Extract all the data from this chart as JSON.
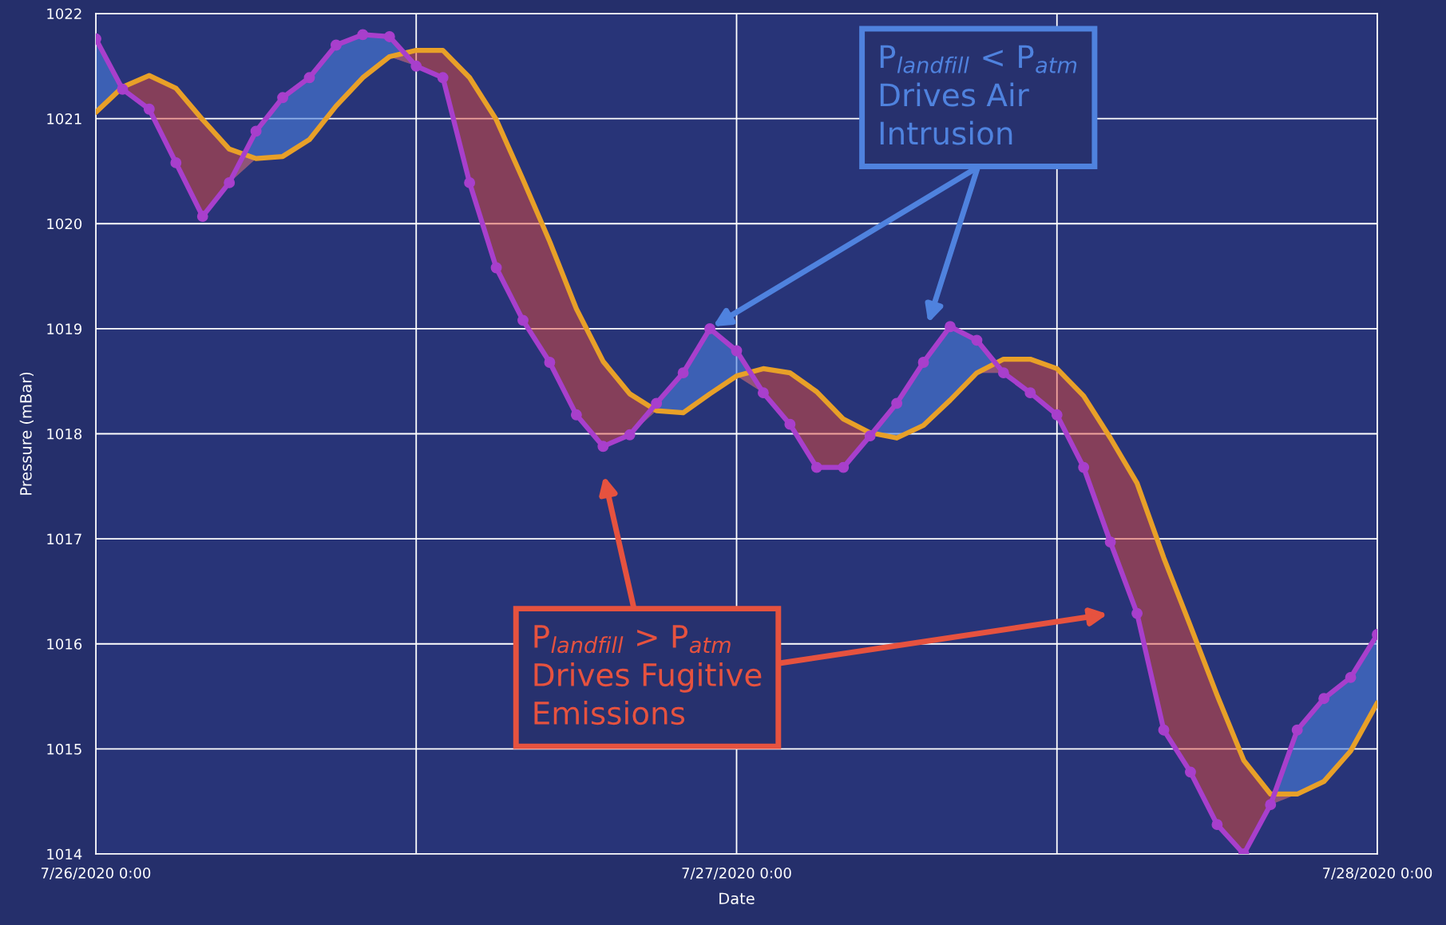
{
  "chart_data": {
    "type": "line",
    "xlabel": "Date",
    "ylabel": "Pressure (mBar)",
    "x": [
      "2020-07-26T00:00",
      "2020-07-26T01:00",
      "2020-07-26T02:00",
      "2020-07-26T03:00",
      "2020-07-26T04:00",
      "2020-07-26T05:00",
      "2020-07-26T06:00",
      "2020-07-26T07:00",
      "2020-07-26T08:00",
      "2020-07-26T09:00",
      "2020-07-26T10:00",
      "2020-07-26T11:00",
      "2020-07-26T12:00",
      "2020-07-26T13:00",
      "2020-07-26T14:00",
      "2020-07-26T15:00",
      "2020-07-26T16:00",
      "2020-07-26T17:00",
      "2020-07-26T18:00",
      "2020-07-26T19:00",
      "2020-07-26T20:00",
      "2020-07-26T21:00",
      "2020-07-26T22:00",
      "2020-07-26T23:00",
      "2020-07-27T00:00",
      "2020-07-27T01:00",
      "2020-07-27T02:00",
      "2020-07-27T03:00",
      "2020-07-27T04:00",
      "2020-07-27T05:00",
      "2020-07-27T06:00",
      "2020-07-27T07:00",
      "2020-07-27T08:00",
      "2020-07-27T09:00",
      "2020-07-27T10:00",
      "2020-07-27T11:00",
      "2020-07-27T12:00",
      "2020-07-27T13:00",
      "2020-07-27T14:00",
      "2020-07-27T15:00",
      "2020-07-27T16:00",
      "2020-07-27T17:00",
      "2020-07-27T18:00",
      "2020-07-27T19:00",
      "2020-07-27T20:00",
      "2020-07-27T21:00",
      "2020-07-27T22:00",
      "2020-07-27T23:00",
      "2020-07-28T00:00"
    ],
    "series": [
      {
        "color": "#a83fcc",
        "marker": "circle",
        "values": [
          1021.76,
          1021.28,
          1021.09,
          1020.58,
          1020.07,
          1020.39,
          1020.88,
          1021.2,
          1021.39,
          1021.7,
          1021.8,
          1021.78,
          1021.5,
          1021.39,
          1020.39,
          1019.58,
          1019.08,
          1018.68,
          1018.18,
          1017.88,
          1017.99,
          1018.29,
          1018.58,
          1019.0,
          1018.79,
          1018.39,
          1018.09,
          1017.68,
          1017.68,
          1017.98,
          1018.29,
          1018.68,
          1019.02,
          1018.89,
          1018.58,
          1018.39,
          1018.18,
          1017.68,
          1016.97,
          1016.29,
          1015.18,
          1014.78,
          1014.28,
          1014.0,
          1014.47,
          1015.18,
          1015.48,
          1015.68,
          1016.09
        ],
        "lower": [
          1021.06,
          1021.28,
          1021.09,
          1020.58,
          1020.07,
          1020.39,
          1020.62,
          1020.64,
          1020.8,
          1021.12,
          1021.39,
          1021.59,
          1021.5,
          1021.39,
          1020.39,
          1019.58,
          1019.08,
          1018.68,
          1018.18,
          1017.88,
          1017.99,
          1018.22,
          1018.2,
          1018.38,
          1018.55,
          1018.39,
          1018.09,
          1017.68,
          1017.68,
          1017.98,
          1017.96,
          1018.08,
          1018.32,
          1018.58,
          1018.58,
          1018.39,
          1018.18,
          1017.68,
          1016.97,
          1016.29,
          1015.18,
          1014.78,
          1014.28,
          1014.0,
          1014.47,
          1014.57,
          1014.69,
          1014.98,
          1015.44
        ],
        "upper": [
          1021.76,
          1021.28,
          1021.09,
          1020.58,
          1020.07,
          1020.39,
          1020.88,
          1021.2,
          1021.39,
          1021.7,
          1021.8,
          1021.78,
          1021.5,
          1021.39,
          1020.39,
          1019.58,
          1019.08,
          1018.68,
          1018.18,
          1017.88,
          1017.99,
          1018.29,
          1018.58,
          1019.0,
          1018.79,
          1018.39,
          1018.09,
          1017.68,
          1017.68,
          1017.98,
          1018.29,
          1018.68,
          1019.02,
          1018.89,
          1018.58,
          1018.39,
          1018.18,
          1017.68,
          1016.97,
          1016.29,
          1015.18,
          1014.78,
          1014.28,
          1014.0,
          1014.47,
          1015.18,
          1015.48,
          1015.68,
          1016.09
        ]
      },
      {
        "color": "#e8a028",
        "marker": "none",
        "values": [
          1021.06,
          1021.3,
          1021.41,
          1021.29,
          1020.99,
          1020.71,
          1020.62,
          1020.64,
          1020.8,
          1021.12,
          1021.39,
          1021.59,
          1021.65,
          1021.65,
          1021.39,
          1020.99,
          1020.42,
          1019.83,
          1019.19,
          1018.69,
          1018.38,
          1018.22,
          1018.2,
          1018.38,
          1018.55,
          1018.62,
          1018.58,
          1018.4,
          1018.14,
          1018.01,
          1017.96,
          1018.08,
          1018.32,
          1018.58,
          1018.71,
          1018.71,
          1018.62,
          1018.36,
          1017.96,
          1017.53,
          1016.82,
          1016.17,
          1015.51,
          1014.89,
          1014.57,
          1014.57,
          1014.69,
          1014.98,
          1015.44
        ],
        "lower": [
          1021.06,
          1021.28,
          1021.09,
          1020.58,
          1020.07,
          1020.39,
          1020.62,
          1020.64,
          1020.8,
          1021.12,
          1021.39,
          1021.59,
          1021.5,
          1021.39,
          1020.39,
          1019.58,
          1019.08,
          1018.68,
          1018.18,
          1017.88,
          1017.99,
          1018.22,
          1018.2,
          1018.38,
          1018.55,
          1018.39,
          1018.09,
          1017.68,
          1017.68,
          1017.98,
          1017.96,
          1018.08,
          1018.32,
          1018.58,
          1018.58,
          1018.39,
          1018.18,
          1017.68,
          1016.97,
          1016.29,
          1015.18,
          1014.78,
          1014.28,
          1014.0,
          1014.47,
          1014.57,
          1014.69,
          1014.98,
          1015.44
        ],
        "upper": [
          1021.06,
          1021.3,
          1021.41,
          1021.29,
          1020.99,
          1020.71,
          1020.62,
          1020.64,
          1020.8,
          1021.12,
          1021.39,
          1021.59,
          1021.65,
          1021.65,
          1021.39,
          1020.99,
          1020.42,
          1019.83,
          1019.19,
          1018.69,
          1018.38,
          1018.22,
          1018.2,
          1018.38,
          1018.55,
          1018.62,
          1018.58,
          1018.4,
          1018.14,
          1018.01,
          1017.96,
          1018.08,
          1018.32,
          1018.58,
          1018.71,
          1018.71,
          1018.62,
          1018.36,
          1017.96,
          1017.53,
          1016.82,
          1016.17,
          1015.51,
          1014.89,
          1014.57,
          1014.57,
          1014.69,
          1014.98,
          1015.44
        ]
      }
    ],
    "xlim": [
      "2020-07-26T00:00",
      "2020-07-28T00:00"
    ],
    "xticks": [
      {
        "value": "2020-07-26T00:00",
        "label": "7/26/2020 0:00"
      },
      {
        "value": "2020-07-26T12:00",
        "label": null
      },
      {
        "value": "2020-07-27T00:00",
        "label": "7/27/2020 0:00"
      },
      {
        "value": "2020-07-27T12:00",
        "label": null
      },
      {
        "value": "2020-07-28T00:00",
        "label": "7/28/2020 0:00"
      }
    ],
    "ylim": [
      1014,
      1022
    ],
    "yticks": [
      1014,
      1015,
      1016,
      1017,
      1018,
      1019,
      1020,
      1021,
      1022
    ],
    "grid": true,
    "legend": false,
    "line_style": "solid",
    "annotations": [
      "P$_{landfill}$ < P$_{atm}$\nDrives Air\nIntrusion",
      "P$_{landfill}$ > P$_{atm}$\nDrives Fugitive\nEmissions"
    ]
  }
}
